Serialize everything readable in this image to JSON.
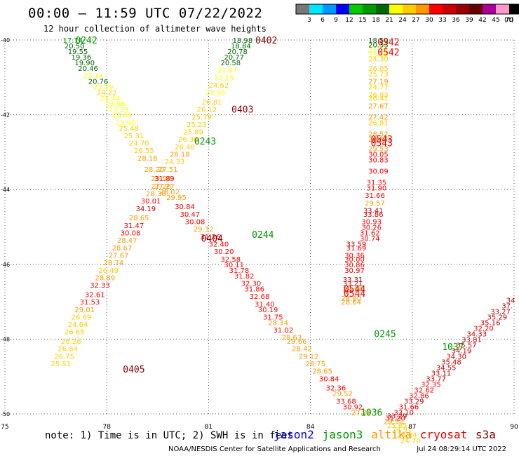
{
  "header": {
    "title": "00:00 — 11:59 UTC 07/22/2022",
    "subtitle": "12 hour collection of altimeter wave heights",
    "ft_label": "(ft)"
  },
  "colorbar": {
    "labels": [
      "3",
      "6",
      "9",
      "12",
      "15",
      "18",
      "21",
      "24",
      "27",
      "30",
      "33",
      "36",
      "39",
      "42",
      "45",
      "70"
    ],
    "colors": [
      "#777777",
      "#00e5ff",
      "#0099ff",
      "#0000ff",
      "#00cc00",
      "#009900",
      "#006600",
      "#ffff00",
      "#ffcc00",
      "#ff9900",
      "#ff0000",
      "#cc0000",
      "#990000",
      "#660000",
      "#aa0099",
      "#ff99cc",
      "#000000"
    ]
  },
  "map": {
    "lat_ticks": [
      "-40",
      "-42",
      "-44",
      "-46",
      "-48",
      "-50"
    ],
    "lon_ticks": [
      "75",
      "78",
      "81",
      "84",
      "87",
      "90"
    ]
  },
  "footer": {
    "note": "note: 1) Time is in UTC; 2) SWH is in feet",
    "satellites": [
      {
        "name": "jason2",
        "color": "#0000ee"
      },
      {
        "name": "jason3",
        "color": "#009900"
      },
      {
        "name": "altika",
        "color": "#ff9900"
      },
      {
        "name": "cryosat",
        "color": "#ee0000"
      },
      {
        "name": "s3a",
        "color": "#880000"
      }
    ],
    "credit": "NOAA/NESDIS Center for Satellite Applications and Research",
    "timestamp": "Jul 24 08:29:14 UTC 2022"
  },
  "track_labels": [
    {
      "text": "0242",
      "lon": 77.4,
      "lat": -40.0,
      "color": "#009900"
    },
    {
      "text": "0402",
      "lon": 82.7,
      "lat": -40.0,
      "color": "#880000"
    },
    {
      "text": "0542",
      "lon": 86.3,
      "lat": -40.05,
      "color": "#ee0000"
    },
    {
      "text": "0542",
      "lon": 86.3,
      "lat": -40.32,
      "color": "#ee0000"
    },
    {
      "text": "0403",
      "lon": 82.0,
      "lat": -41.85,
      "color": "#880000"
    },
    {
      "text": "0243",
      "lon": 80.9,
      "lat": -42.7,
      "color": "#009900"
    },
    {
      "text": "0543",
      "lon": 86.1,
      "lat": -42.65,
      "color": "#ee0000"
    },
    {
      "text": "0543",
      "lon": 86.1,
      "lat": -42.75,
      "color": "#ee0000"
    },
    {
      "text": "0404",
      "lon": 81.1,
      "lat": -45.3,
      "color": "#880000"
    },
    {
      "text": "0244",
      "lon": 82.6,
      "lat": -45.2,
      "color": "#009900"
    },
    {
      "text": "0544",
      "lon": 85.3,
      "lat": -46.65,
      "color": "#ee0000"
    },
    {
      "text": "0544",
      "lon": 85.3,
      "lat": -46.77,
      "color": "#ee0000"
    },
    {
      "text": "0245",
      "lon": 86.2,
      "lat": -47.85,
      "color": "#009900"
    },
    {
      "text": "1037",
      "lon": 88.2,
      "lat": -48.2,
      "color": "#009900"
    },
    {
      "text": "0405",
      "lon": 78.8,
      "lat": -48.8,
      "color": "#880000"
    },
    {
      "text": "1036",
      "lon": 85.8,
      "lat": -49.95,
      "color": "#009900"
    }
  ],
  "observations": [
    {
      "v": "17.74",
      "lon": 77.0,
      "lat": -40.0
    },
    {
      "v": "20.50",
      "lon": 77.05,
      "lat": -40.15
    },
    {
      "v": "19.55",
      "lon": 77.15,
      "lat": -40.3
    },
    {
      "v": "19.36",
      "lon": 77.25,
      "lat": -40.45
    },
    {
      "v": "19.90",
      "lon": 77.35,
      "lat": -40.6
    },
    {
      "v": "20.46",
      "lon": 77.45,
      "lat": -40.75
    },
    {
      "v": "23.14",
      "lon": 77.6,
      "lat": -40.95
    },
    {
      "v": "20.76",
      "lon": 77.75,
      "lat": -41.1
    },
    {
      "v": "22.29",
      "lon": 77.9,
      "lat": -41.25
    },
    {
      "v": "24.22",
      "lon": 78.0,
      "lat": -41.4
    },
    {
      "v": "23.44",
      "lon": 78.1,
      "lat": -41.55
    },
    {
      "v": "23.96",
      "lon": 78.25,
      "lat": -41.7
    },
    {
      "v": "23.39",
      "lon": 78.35,
      "lat": -41.85
    },
    {
      "v": "23.84",
      "lon": 78.45,
      "lat": -42.0
    },
    {
      "v": "23.90",
      "lon": 78.55,
      "lat": -42.2
    },
    {
      "v": "25.48",
      "lon": 78.65,
      "lat": -42.35
    },
    {
      "v": "25.31",
      "lon": 78.8,
      "lat": -42.55
    },
    {
      "v": "24.70",
      "lon": 78.95,
      "lat": -42.75
    },
    {
      "v": "26.55",
      "lon": 79.1,
      "lat": -42.95
    },
    {
      "v": "28.18",
      "lon": 79.2,
      "lat": -43.15
    },
    {
      "v": "28.20",
      "lon": 79.4,
      "lat": -43.45
    },
    {
      "v": "29.54",
      "lon": 79.6,
      "lat": -43.7
    },
    {
      "v": "27.27",
      "lon": 79.7,
      "lat": -43.9
    },
    {
      "v": "28.02",
      "lon": 79.85,
      "lat": -44.05
    },
    {
      "v": "29.95",
      "lon": 80.05,
      "lat": -44.2
    },
    {
      "v": "30.84",
      "lon": 80.3,
      "lat": -44.45
    },
    {
      "v": "30.47",
      "lon": 80.45,
      "lat": -44.65
    },
    {
      "v": "30.08",
      "lon": 80.6,
      "lat": -44.85
    },
    {
      "v": "29.32",
      "lon": 80.85,
      "lat": -45.05
    },
    {
      "v": "31.26",
      "lon": 81.05,
      "lat": -45.25
    },
    {
      "v": "32.40",
      "lon": 81.3,
      "lat": -45.45
    },
    {
      "v": "30.20",
      "lon": 81.45,
      "lat": -45.65
    },
    {
      "v": "32.58",
      "lon": 81.65,
      "lat": -45.85
    },
    {
      "v": "30.11",
      "lon": 81.75,
      "lat": -46.0
    },
    {
      "v": "31.78",
      "lon": 81.9,
      "lat": -46.15
    },
    {
      "v": "31.82",
      "lon": 82.05,
      "lat": -46.3
    },
    {
      "v": "32.30",
      "lon": 82.25,
      "lat": -46.5
    },
    {
      "v": "31.86",
      "lon": 82.35,
      "lat": -46.65
    },
    {
      "v": "32.68",
      "lon": 82.5,
      "lat": -46.85
    },
    {
      "v": "31.40",
      "lon": 82.65,
      "lat": -47.05
    },
    {
      "v": "30.19",
      "lon": 82.75,
      "lat": -47.2
    },
    {
      "v": "31.75",
      "lon": 82.9,
      "lat": -47.4
    },
    {
      "v": "28.34",
      "lon": 83.05,
      "lat": -47.55
    },
    {
      "v": "31.02",
      "lon": 83.2,
      "lat": -47.75
    },
    {
      "v": "28.63",
      "lon": 83.45,
      "lat": -47.95
    },
    {
      "v": "29.66",
      "lon": 83.6,
      "lat": -48.05
    },
    {
      "v": "28.42",
      "lon": 83.75,
      "lat": -48.25
    },
    {
      "v": "29.12",
      "lon": 83.95,
      "lat": -48.45
    },
    {
      "v": "28.75",
      "lon": 84.15,
      "lat": -48.65
    },
    {
      "v": "28.65",
      "lon": 84.35,
      "lat": -48.85
    },
    {
      "v": "30.84",
      "lon": 84.55,
      "lat": -49.05
    },
    {
      "v": "32.36",
      "lon": 84.75,
      "lat": -49.3
    },
    {
      "v": "29.52",
      "lon": 84.95,
      "lat": -49.45
    },
    {
      "v": "33.68",
      "lon": 85.05,
      "lat": -49.65
    },
    {
      "v": "30.92",
      "lon": 85.25,
      "lat": -49.8
    },
    {
      "v": "27.82",
      "lon": 85.5,
      "lat": -49.95
    },
    {
      "v": "18.98",
      "lon": 82.0,
      "lat": -40.0
    },
    {
      "v": "18.84",
      "lon": 81.95,
      "lat": -40.15
    },
    {
      "v": "20.78",
      "lon": 81.85,
      "lat": -40.3
    },
    {
      "v": "20.77",
      "lon": 81.75,
      "lat": -40.45
    },
    {
      "v": "20.58",
      "lon": 81.65,
      "lat": -40.6
    },
    {
      "v": "21.97",
      "lon": 81.55,
      "lat": -40.8
    },
    {
      "v": "22.15",
      "lon": 81.45,
      "lat": -41.0
    },
    {
      "v": "24.62",
      "lon": 81.3,
      "lat": -41.2
    },
    {
      "v": "23.96",
      "lon": 81.2,
      "lat": -41.4
    },
    {
      "v": "26.81",
      "lon": 81.1,
      "lat": -41.65
    },
    {
      "v": "26.12",
      "lon": 80.95,
      "lat": -41.85
    },
    {
      "v": "25.79",
      "lon": 80.8,
      "lat": -42.05
    },
    {
      "v": "25.23",
      "lon": 80.65,
      "lat": -42.25
    },
    {
      "v": "25.89",
      "lon": 80.55,
      "lat": -42.45
    },
    {
      "v": "26.36",
      "lon": 80.4,
      "lat": -42.65
    },
    {
      "v": "26.48",
      "lon": 80.3,
      "lat": -42.85
    },
    {
      "v": "28.18",
      "lon": 80.15,
      "lat": -43.05
    },
    {
      "v": "24.33",
      "lon": 80.0,
      "lat": -43.25
    },
    {
      "v": "27.51",
      "lon": 79.8,
      "lat": -43.45
    },
    {
      "v": "31.89",
      "lon": 79.7,
      "lat": -43.7
    },
    {
      "v": "27.26",
      "lon": 79.6,
      "lat": -43.9
    },
    {
      "v": "28.38",
      "lon": 79.45,
      "lat": -44.1
    },
    {
      "v": "30.01",
      "lon": 79.3,
      "lat": -44.3
    },
    {
      "v": "34.19",
      "lon": 79.15,
      "lat": -44.5
    },
    {
      "v": "28.65",
      "lon": 78.95,
      "lat": -44.75
    },
    {
      "v": "31.47",
      "lon": 78.8,
      "lat": -44.95
    },
    {
      "v": "30.08",
      "lon": 78.7,
      "lat": -45.15
    },
    {
      "v": "28.47",
      "lon": 78.6,
      "lat": -45.35
    },
    {
      "v": "28.67",
      "lon": 78.45,
      "lat": -45.55
    },
    {
      "v": "27.67",
      "lon": 78.35,
      "lat": -45.75
    },
    {
      "v": "28.74",
      "lon": 78.2,
      "lat": -45.95
    },
    {
      "v": "26.49",
      "lon": 78.05,
      "lat": -46.15
    },
    {
      "v": "28.89",
      "lon": 77.95,
      "lat": -46.35
    },
    {
      "v": "32.33",
      "lon": 77.8,
      "lat": -46.55
    },
    {
      "v": "32.61",
      "lon": 77.65,
      "lat": -46.8
    },
    {
      "v": "31.53",
      "lon": 77.5,
      "lat": -47.0
    },
    {
      "v": "29.01",
      "lon": 77.35,
      "lat": -47.2
    },
    {
      "v": "26.69",
      "lon": 77.25,
      "lat": -47.4
    },
    {
      "v": "24.64",
      "lon": 77.15,
      "lat": -47.6
    },
    {
      "v": "26.65",
      "lon": 77.05,
      "lat": -47.8
    },
    {
      "v": "26.28",
      "lon": 76.95,
      "lat": -48.05
    },
    {
      "v": "26.84",
      "lon": 76.85,
      "lat": -48.25
    },
    {
      "v": "26.75",
      "lon": 76.75,
      "lat": -48.45
    },
    {
      "v": "25.51",
      "lon": 76.65,
      "lat": -48.65
    },
    {
      "v": "18.50",
      "lon": 86.0,
      "lat": -40.0
    },
    {
      "v": "20.33",
      "lon": 86.0,
      "lat": -40.12
    },
    {
      "v": "22.72",
      "lon": 86.0,
      "lat": -40.25
    },
    {
      "v": "23.45",
      "lon": 86.0,
      "lat": -40.38
    },
    {
      "v": "24.30",
      "lon": 86.0,
      "lat": -40.5
    },
    {
      "v": "26.05",
      "lon": 86.0,
      "lat": -40.75
    },
    {
      "v": "25.73",
      "lon": 86.0,
      "lat": -40.9
    },
    {
      "v": "27.19",
      "lon": 86.0,
      "lat": -41.1
    },
    {
      "v": "24.77",
      "lon": 86.0,
      "lat": -41.25
    },
    {
      "v": "26.93",
      "lon": 86.0,
      "lat": -41.45
    },
    {
      "v": "26.41",
      "lon": 86.0,
      "lat": -41.55
    },
    {
      "v": "27.67",
      "lon": 86.0,
      "lat": -41.75
    },
    {
      "v": "27.42",
      "lon": 86.0,
      "lat": -42.05
    },
    {
      "v": "26.81",
      "lon": 86.0,
      "lat": -42.2
    },
    {
      "v": "28.52",
      "lon": 86.0,
      "lat": -42.5
    },
    {
      "v": "28.54",
      "lon": 86.0,
      "lat": -42.65
    },
    {
      "v": "29.53",
      "lon": 86.0,
      "lat": -42.9
    },
    {
      "v": "30.05",
      "lon": 86.0,
      "lat": -43.05
    },
    {
      "v": "30.83",
      "lon": 86.0,
      "lat": -43.2
    },
    {
      "v": "30.09",
      "lon": 86.0,
      "lat": -43.5
    },
    {
      "v": "31.35",
      "lon": 85.95,
      "lat": -43.8
    },
    {
      "v": "31.90",
      "lon": 85.95,
      "lat": -43.95
    },
    {
      "v": "31.66",
      "lon": 85.9,
      "lat": -44.15
    },
    {
      "v": "29.57",
      "lon": 85.9,
      "lat": -44.35
    },
    {
      "v": "33.41",
      "lon": 85.85,
      "lat": -44.55
    },
    {
      "v": "33.86",
      "lon": 85.85,
      "lat": -44.65
    },
    {
      "v": "30.93",
      "lon": 85.8,
      "lat": -44.85
    },
    {
      "v": "30.26",
      "lon": 85.8,
      "lat": -45.0
    },
    {
      "v": "31.62",
      "lon": 85.75,
      "lat": -45.15
    },
    {
      "v": "30.74",
      "lon": 85.75,
      "lat": -45.3
    },
    {
      "v": "33.59",
      "lon": 85.35,
      "lat": -45.45
    },
    {
      "v": "31.69",
      "lon": 85.35,
      "lat": -45.55
    },
    {
      "v": "30.36",
      "lon": 85.3,
      "lat": -45.75
    },
    {
      "v": "30.00",
      "lon": 85.3,
      "lat": -45.85
    },
    {
      "v": "30.86",
      "lon": 85.3,
      "lat": -46.0
    },
    {
      "v": "30.97",
      "lon": 85.3,
      "lat": -46.15
    },
    {
      "v": "33.31",
      "lon": 85.25,
      "lat": -46.4
    },
    {
      "v": "33.21",
      "lon": 85.25,
      "lat": -46.5
    },
    {
      "v": "29.34",
      "lon": 85.25,
      "lat": -46.65
    },
    {
      "v": "28.80",
      "lon": 85.2,
      "lat": -46.9
    },
    {
      "v": "28.64",
      "lon": 85.2,
      "lat": -47.0
    },
    {
      "v": "34",
      "lon": 89.9,
      "lat": -46.95
    },
    {
      "v": "37.",
      "lon": 89.8,
      "lat": -47.1
    },
    {
      "v": "33.27",
      "lon": 89.6,
      "lat": -47.25
    },
    {
      "v": "35.29",
      "lon": 89.5,
      "lat": -47.4
    },
    {
      "v": "35.16",
      "lon": 89.3,
      "lat": -47.55
    },
    {
      "v": "32.20",
      "lon": 89.1,
      "lat": -47.7
    },
    {
      "v": "34.33",
      "lon": 88.9,
      "lat": -47.85
    },
    {
      "v": "33.81",
      "lon": 88.75,
      "lat": -48.0
    },
    {
      "v": "35.57",
      "lon": 88.6,
      "lat": -48.15
    },
    {
      "v": "34.19",
      "lon": 88.45,
      "lat": -48.3
    },
    {
      "v": "34.30",
      "lon": 88.3,
      "lat": -48.45
    },
    {
      "v": "35.48",
      "lon": 88.15,
      "lat": -48.6
    },
    {
      "v": "34.55",
      "lon": 88.0,
      "lat": -48.75
    },
    {
      "v": "33.11",
      "lon": 87.85,
      "lat": -48.9
    },
    {
      "v": "33.77",
      "lon": 87.7,
      "lat": -49.05
    },
    {
      "v": "32.35",
      "lon": 87.55,
      "lat": -49.2
    },
    {
      "v": "32.62",
      "lon": 87.35,
      "lat": -49.35
    },
    {
      "v": "32.86",
      "lon": 87.2,
      "lat": -49.5
    },
    {
      "v": "33.29",
      "lon": 87.05,
      "lat": -49.65
    },
    {
      "v": "31.66",
      "lon": 86.9,
      "lat": -49.8
    },
    {
      "v": "33.10",
      "lon": 86.75,
      "lat": -49.95
    },
    {
      "v": "33.29",
      "lon": 86.55,
      "lat": -50.05
    },
    {
      "v": "31.20",
      "lon": 86.5,
      "lat": -50.1
    },
    {
      "v": "29.50",
      "lon": 86.45,
      "lat": -50.2
    },
    {
      "v": "25.85",
      "lon": 86.55,
      "lat": -50.3
    },
    {
      "v": "24.91",
      "lon": 86.7,
      "lat": -50.4
    },
    {
      "v": "24.04",
      "lon": 86.85,
      "lat": -50.55
    },
    {
      "v": "24.70",
      "lon": 86.95,
      "lat": -50.7
    }
  ]
}
